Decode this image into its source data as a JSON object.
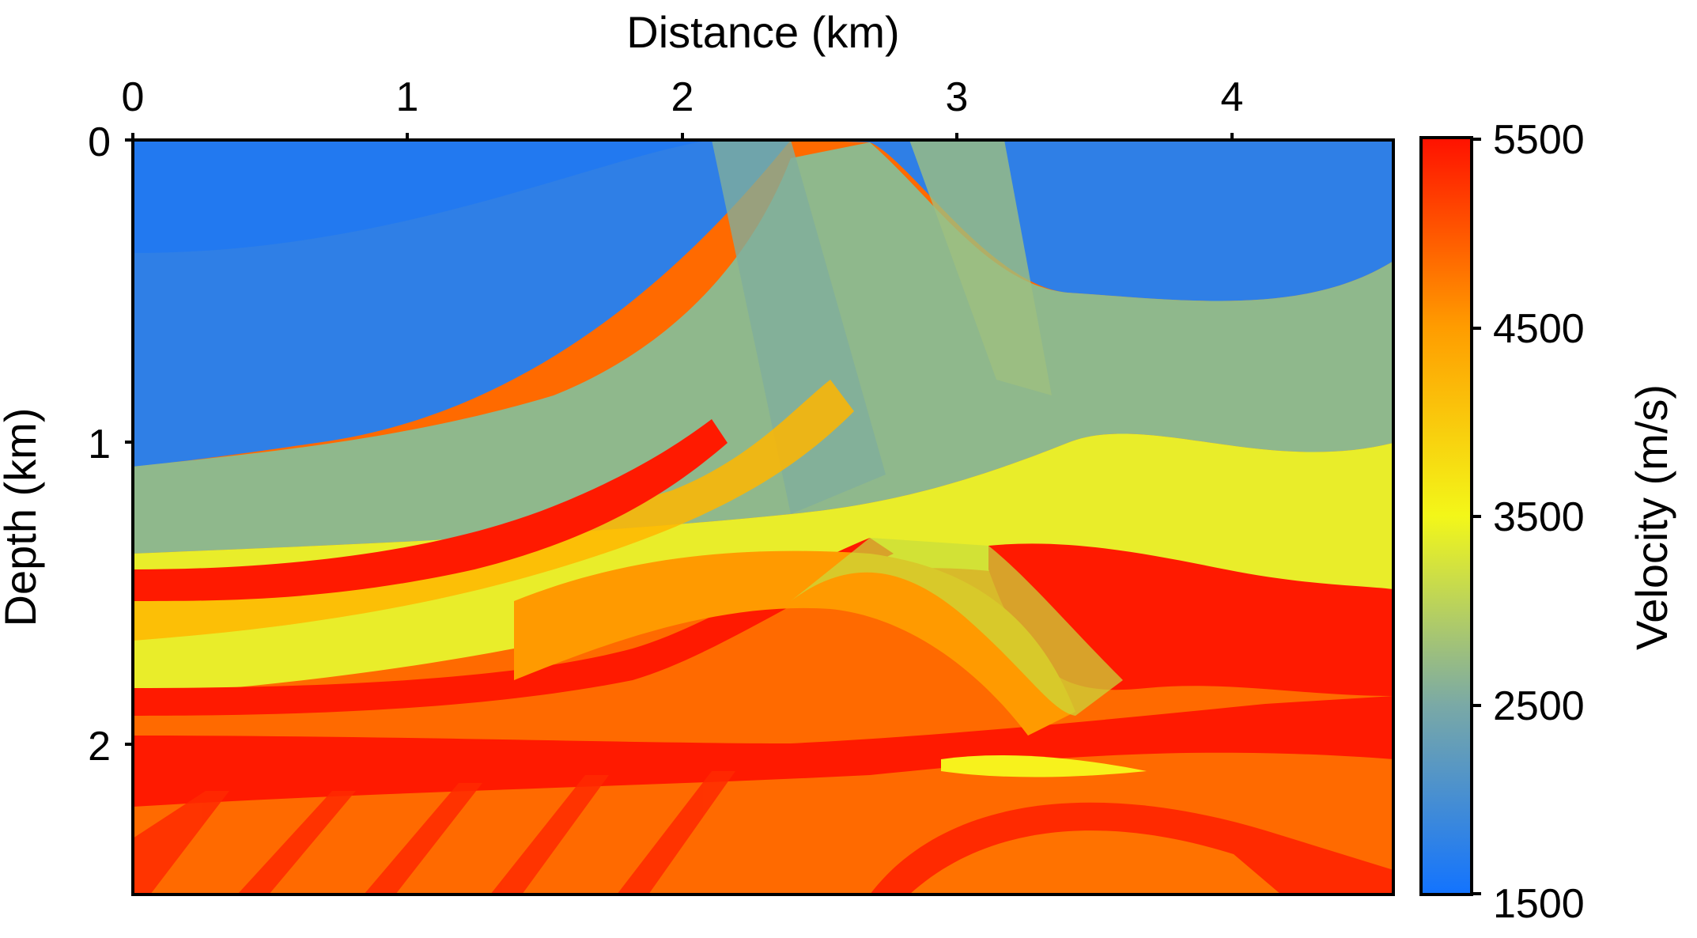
{
  "chart_data": {
    "type": "heatmap",
    "title": "",
    "xlabel": "Distance (km)",
    "ylabel": "Depth (km)",
    "colorbar_label": "Velocity (m/s)",
    "xlim": [
      0,
      4.6
    ],
    "ylim": [
      2.5,
      0
    ],
    "x_axis_position": "top",
    "x_ticks": [
      "0",
      "1",
      "2",
      "3",
      "4"
    ],
    "y_ticks": [
      "0",
      "1",
      "2"
    ],
    "colorbar": {
      "range": [
        1500,
        5500
      ],
      "ticks": [
        "1500",
        "2500",
        "3500",
        "4500",
        "5500"
      ],
      "colormap": [
        "#1273ff",
        "#7aa9a6",
        "#f3f719",
        "#ff9c00",
        "#ff1100"
      ]
    },
    "grid": false,
    "legend": "none"
  }
}
